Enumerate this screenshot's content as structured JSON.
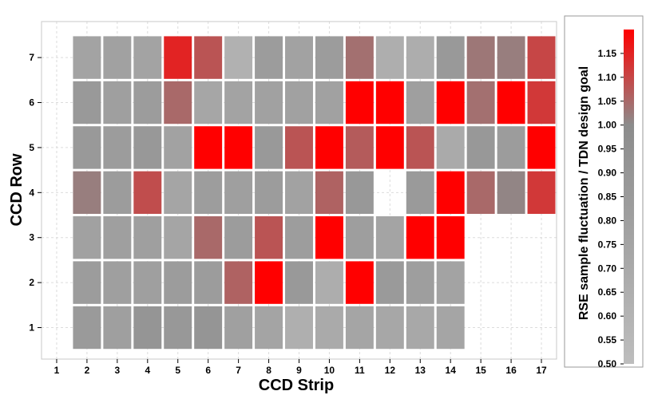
{
  "chart_data": {
    "type": "heatmap",
    "title": "",
    "xlabel": "CCD Strip",
    "ylabel": "CCD Row",
    "x_ticks": [
      "1",
      "2",
      "3",
      "4",
      "5",
      "6",
      "7",
      "8",
      "9",
      "10",
      "11",
      "12",
      "13",
      "14",
      "15",
      "16",
      "17"
    ],
    "y_ticks": [
      "1",
      "2",
      "3",
      "4",
      "5",
      "6",
      "7"
    ],
    "xlim": [
      0.5,
      17.5
    ],
    "ylim": [
      0.3,
      7.8
    ],
    "grid": true,
    "colorbar": {
      "label": "RSE sample fluctuation / TDN design goal",
      "range": [
        0.5,
        1.2
      ],
      "ticks": [
        "0.50",
        "0.55",
        "0.60",
        "0.65",
        "0.70",
        "0.75",
        "0.80",
        "0.85",
        "0.90",
        "0.95",
        "1.00",
        "1.05",
        "1.10",
        "1.15"
      ],
      "colors": {
        "low": "#bdbdbd",
        "mid": "#8c8c8c",
        "high": "#ff0000"
      }
    },
    "rows": [
      {
        "row": 7,
        "values": [
          null,
          0.77,
          0.79,
          0.77,
          1.15,
          1.08,
          0.62,
          0.84,
          0.78,
          0.84,
          1.04,
          0.65,
          0.66,
          0.87,
          1.03,
          1.02,
          1.1
        ]
      },
      {
        "row": 6,
        "values": [
          null,
          0.87,
          0.81,
          0.84,
          1.05,
          0.73,
          0.77,
          0.79,
          0.79,
          0.79,
          1.2,
          1.2,
          0.81,
          1.2,
          1.04,
          1.2,
          1.12
        ]
      },
      {
        "row": 5,
        "values": [
          null,
          0.87,
          0.84,
          0.88,
          0.78,
          1.2,
          1.2,
          0.87,
          1.08,
          1.2,
          1.07,
          1.2,
          1.08,
          0.69,
          0.88,
          0.84,
          1.2
        ]
      },
      {
        "row": 4,
        "values": [
          null,
          1.02,
          0.84,
          1.09,
          0.74,
          0.83,
          0.81,
          0.84,
          0.78,
          1.06,
          0.88,
          null,
          0.86,
          1.2,
          1.05,
          1.01,
          1.12
        ]
      },
      {
        "row": 3,
        "values": [
          null,
          0.79,
          0.81,
          0.81,
          0.74,
          1.05,
          0.84,
          1.08,
          0.83,
          1.2,
          0.82,
          0.76,
          1.2,
          1.2,
          null,
          null,
          null
        ]
      },
      {
        "row": 2,
        "values": [
          null,
          0.84,
          0.81,
          0.81,
          0.84,
          0.84,
          1.06,
          1.2,
          0.87,
          0.66,
          1.2,
          0.86,
          0.82,
          0.77,
          null,
          null,
          null
        ]
      },
      {
        "row": 1,
        "values": [
          null,
          0.86,
          0.81,
          0.91,
          0.88,
          0.91,
          0.8,
          0.76,
          0.64,
          0.69,
          0.74,
          0.72,
          0.71,
          0.75,
          null,
          null,
          null
        ]
      }
    ]
  }
}
